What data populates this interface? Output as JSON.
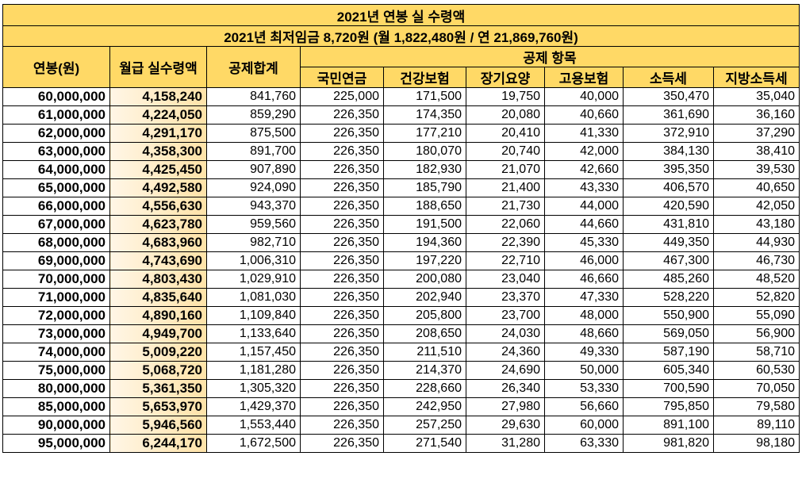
{
  "title": "2021년 연봉 실 수령액",
  "subtitle": "2021년 최저임금 8,720원 (월 1,822,480원 / 연 21,869,760원)",
  "headers": {
    "salary": "연봉(원)",
    "net_monthly": "월급 실수령액",
    "total_deduction": "공제합계",
    "deduction_items": "공제 항목",
    "national_pension": "국민연금",
    "health_insurance": "건강보험",
    "long_term_care": "장기요양",
    "employment_insurance": "고용보험",
    "income_tax": "소득세",
    "local_income_tax": "지방소득세"
  },
  "rows": [
    {
      "salary": "60,000,000",
      "net": "4,158,240",
      "total": "841,760",
      "pension": "225,000",
      "health": "171,500",
      "care": "19,750",
      "employment": "40,000",
      "income_tax": "350,470",
      "local_tax": "35,040"
    },
    {
      "salary": "61,000,000",
      "net": "4,224,050",
      "total": "859,290",
      "pension": "226,350",
      "health": "174,350",
      "care": "20,080",
      "employment": "40,660",
      "income_tax": "361,690",
      "local_tax": "36,160"
    },
    {
      "salary": "62,000,000",
      "net": "4,291,170",
      "total": "875,500",
      "pension": "226,350",
      "health": "177,210",
      "care": "20,410",
      "employment": "41,330",
      "income_tax": "372,910",
      "local_tax": "37,290"
    },
    {
      "salary": "63,000,000",
      "net": "4,358,300",
      "total": "891,700",
      "pension": "226,350",
      "health": "180,070",
      "care": "20,740",
      "employment": "42,000",
      "income_tax": "384,130",
      "local_tax": "38,410"
    },
    {
      "salary": "64,000,000",
      "net": "4,425,450",
      "total": "907,890",
      "pension": "226,350",
      "health": "182,930",
      "care": "21,070",
      "employment": "42,660",
      "income_tax": "395,350",
      "local_tax": "39,530"
    },
    {
      "salary": "65,000,000",
      "net": "4,492,580",
      "total": "924,090",
      "pension": "226,350",
      "health": "185,790",
      "care": "21,400",
      "employment": "43,330",
      "income_tax": "406,570",
      "local_tax": "40,650"
    },
    {
      "salary": "66,000,000",
      "net": "4,556,630",
      "total": "943,370",
      "pension": "226,350",
      "health": "188,650",
      "care": "21,730",
      "employment": "44,000",
      "income_tax": "420,590",
      "local_tax": "42,050"
    },
    {
      "salary": "67,000,000",
      "net": "4,623,780",
      "total": "959,560",
      "pension": "226,350",
      "health": "191,500",
      "care": "22,060",
      "employment": "44,660",
      "income_tax": "431,810",
      "local_tax": "43,180"
    },
    {
      "salary": "68,000,000",
      "net": "4,683,960",
      "total": "982,710",
      "pension": "226,350",
      "health": "194,360",
      "care": "22,390",
      "employment": "45,330",
      "income_tax": "449,350",
      "local_tax": "44,930"
    },
    {
      "salary": "69,000,000",
      "net": "4,743,690",
      "total": "1,006,310",
      "pension": "226,350",
      "health": "197,220",
      "care": "22,710",
      "employment": "46,000",
      "income_tax": "467,300",
      "local_tax": "46,730"
    },
    {
      "salary": "70,000,000",
      "net": "4,803,430",
      "total": "1,029,910",
      "pension": "226,350",
      "health": "200,080",
      "care": "23,040",
      "employment": "46,660",
      "income_tax": "485,260",
      "local_tax": "48,520"
    },
    {
      "salary": "71,000,000",
      "net": "4,835,640",
      "total": "1,081,030",
      "pension": "226,350",
      "health": "202,940",
      "care": "23,370",
      "employment": "47,330",
      "income_tax": "528,220",
      "local_tax": "52,820"
    },
    {
      "salary": "72,000,000",
      "net": "4,890,160",
      "total": "1,109,840",
      "pension": "226,350",
      "health": "205,800",
      "care": "23,700",
      "employment": "48,000",
      "income_tax": "550,900",
      "local_tax": "55,090"
    },
    {
      "salary": "73,000,000",
      "net": "4,949,700",
      "total": "1,133,640",
      "pension": "226,350",
      "health": "208,650",
      "care": "24,030",
      "employment": "48,660",
      "income_tax": "569,050",
      "local_tax": "56,900"
    },
    {
      "salary": "74,000,000",
      "net": "5,009,220",
      "total": "1,157,450",
      "pension": "226,350",
      "health": "211,510",
      "care": "24,360",
      "employment": "49,330",
      "income_tax": "587,190",
      "local_tax": "58,710"
    },
    {
      "salary": "75,000,000",
      "net": "5,068,720",
      "total": "1,181,280",
      "pension": "226,350",
      "health": "214,370",
      "care": "24,690",
      "employment": "50,000",
      "income_tax": "605,340",
      "local_tax": "60,530"
    },
    {
      "salary": "80,000,000",
      "net": "5,361,350",
      "total": "1,305,320",
      "pension": "226,350",
      "health": "228,660",
      "care": "26,340",
      "employment": "53,330",
      "income_tax": "700,590",
      "local_tax": "70,050"
    },
    {
      "salary": "85,000,000",
      "net": "5,653,970",
      "total": "1,429,370",
      "pension": "226,350",
      "health": "242,950",
      "care": "27,980",
      "employment": "56,660",
      "income_tax": "795,850",
      "local_tax": "79,580"
    },
    {
      "salary": "90,000,000",
      "net": "5,946,560",
      "total": "1,553,440",
      "pension": "226,350",
      "health": "257,250",
      "care": "29,630",
      "employment": "60,000",
      "income_tax": "891,100",
      "local_tax": "89,110"
    },
    {
      "salary": "95,000,000",
      "net": "6,244,170",
      "total": "1,672,500",
      "pension": "226,350",
      "health": "271,540",
      "care": "31,280",
      "employment": "63,330",
      "income_tax": "981,820",
      "local_tax": "98,180"
    }
  ],
  "colors": {
    "header_bg": "#ffd966",
    "net_column_bg": "#ffe3a8",
    "border": "#000000"
  }
}
